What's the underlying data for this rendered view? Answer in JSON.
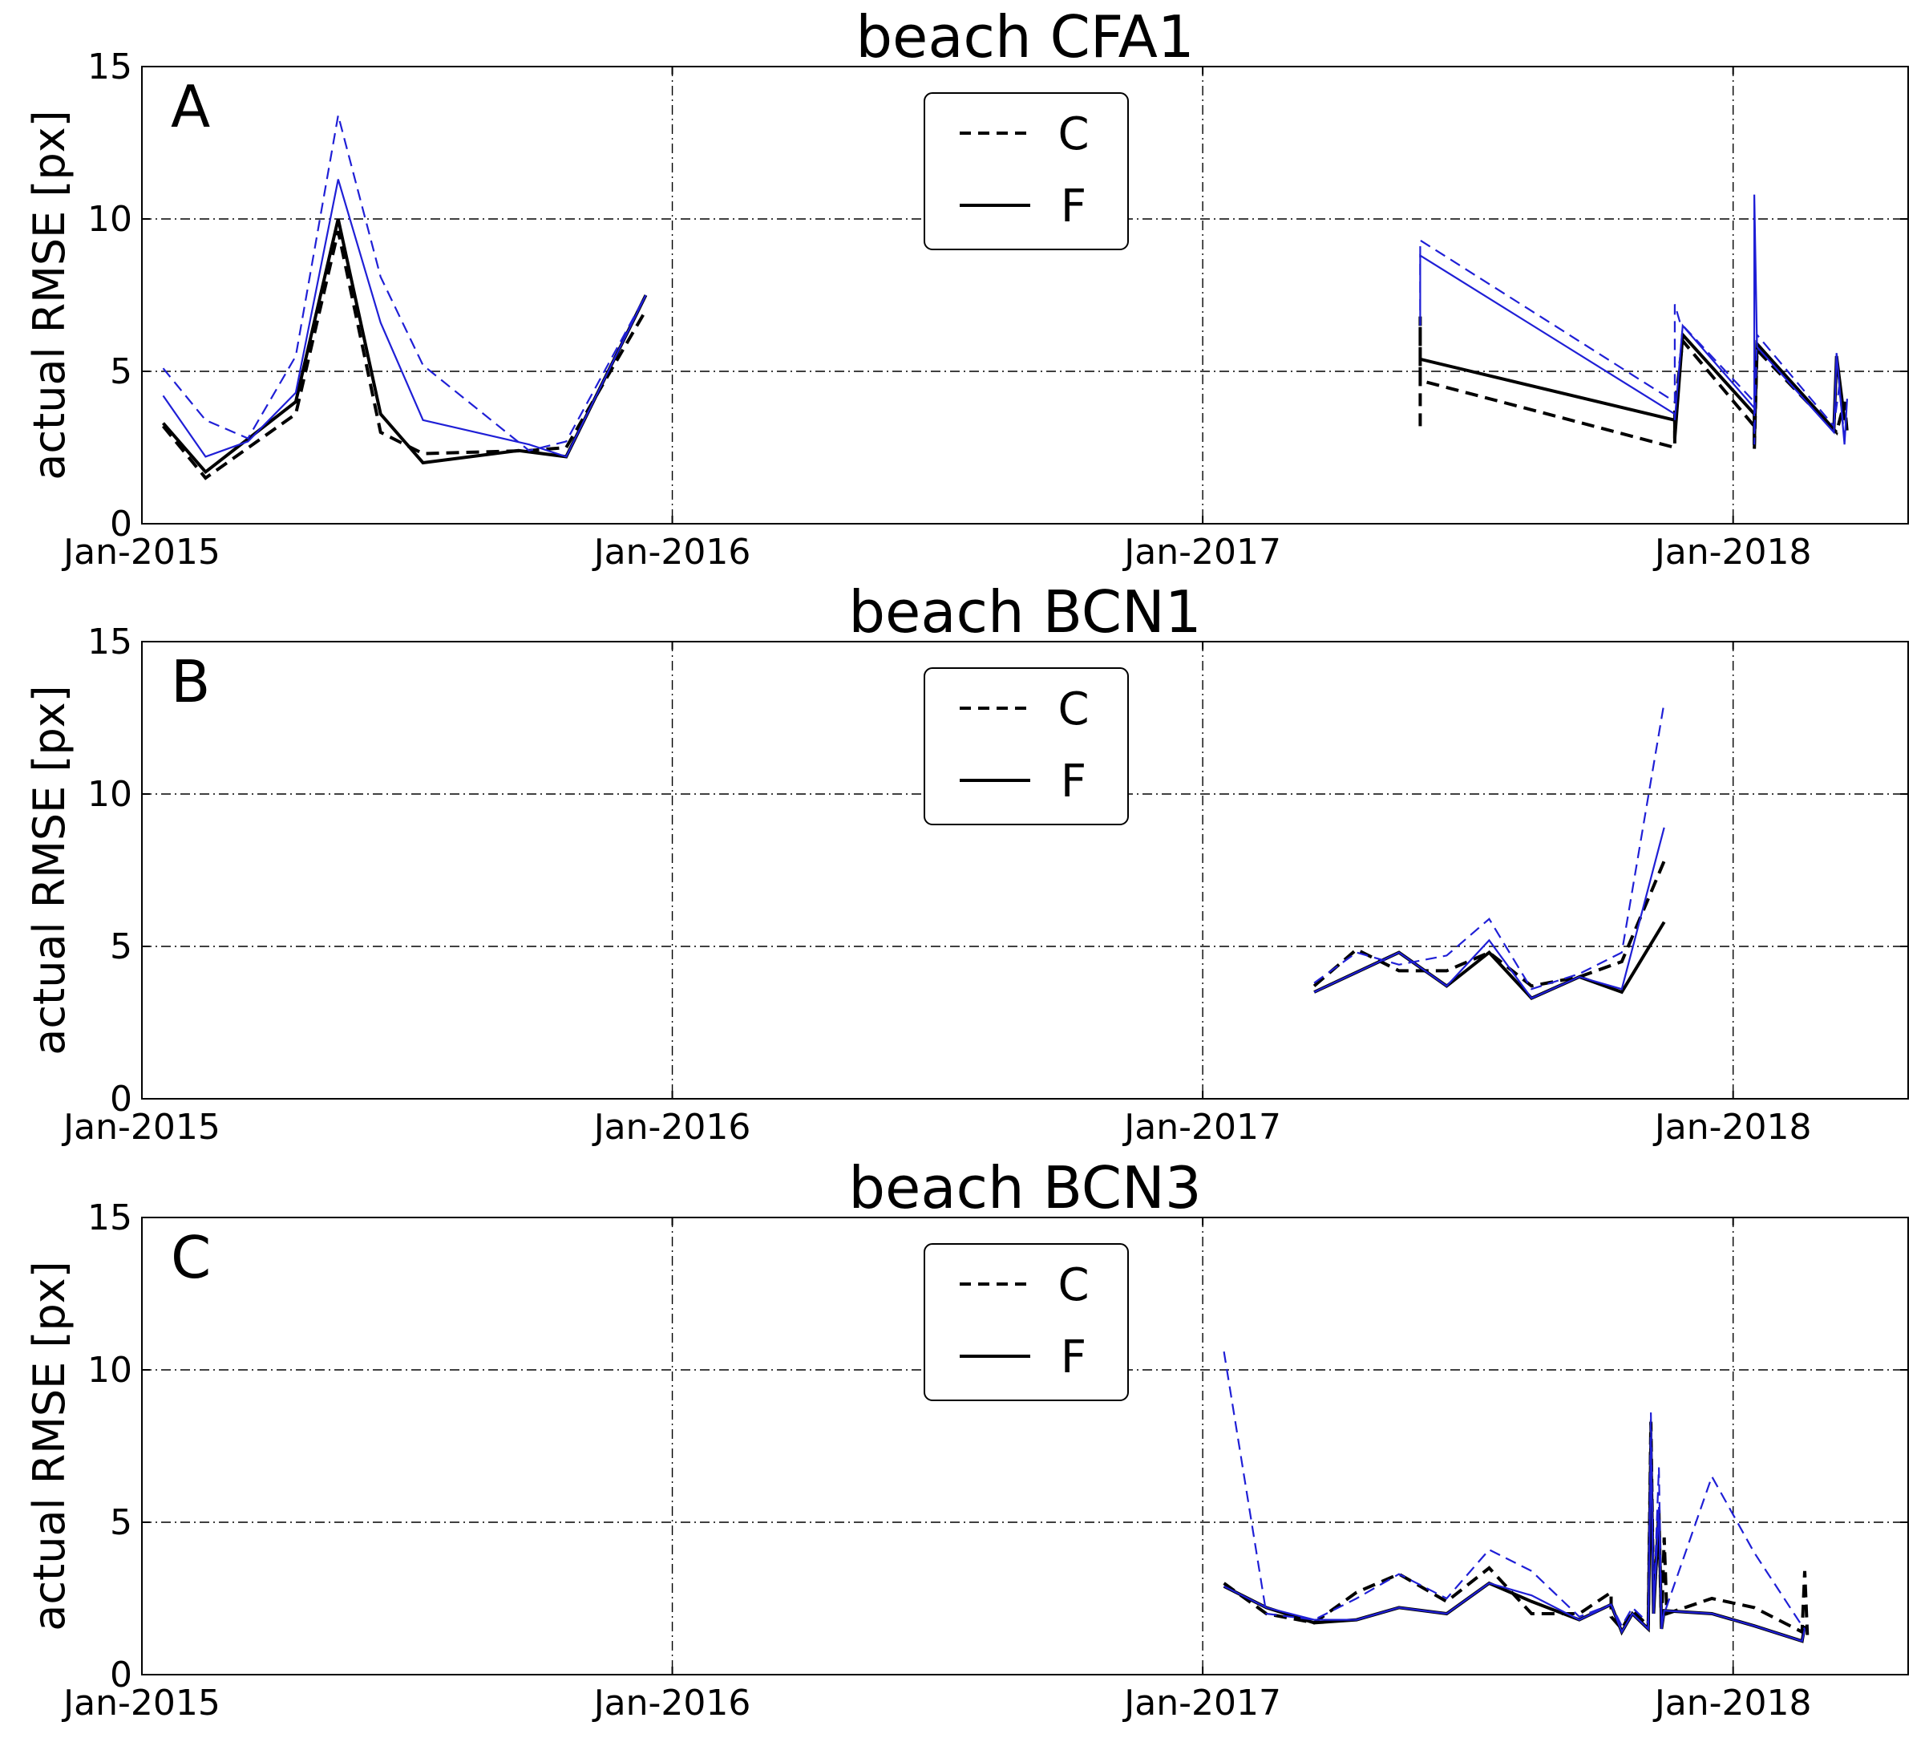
{
  "chart_data": [
    {
      "type": "line",
      "title": "beach CFA1",
      "panel_letter": "A",
      "ylabel": "actual RMSE [px]",
      "ylim": [
        0,
        15
      ],
      "yticks": [
        "0",
        "5",
        "10",
        "15"
      ],
      "xlim": [
        2015.0,
        2018.33
      ],
      "xticks": [
        {
          "label": "Jan-2015",
          "value": 2015.0
        },
        {
          "label": "Jan-2016",
          "value": 2016.0
        },
        {
          "label": "Jan-2017",
          "value": 2017.0
        },
        {
          "label": "Jan-2018",
          "value": 2018.0
        }
      ],
      "grid": true,
      "legend": {
        "position": "top-center",
        "entries": [
          {
            "label": "C",
            "style": "dashed"
          },
          {
            "label": "F",
            "style": "solid"
          }
        ]
      },
      "series": [
        {
          "name": "black C",
          "color": "#000000",
          "style": "dashed",
          "width": 4,
          "segments": [
            {
              "x": [
                2015.04,
                2015.12,
                2015.29,
                2015.37,
                2015.45,
                2015.53,
                2015.73,
                2015.8,
                2015.95
              ],
              "y": [
                3.2,
                1.5,
                3.6,
                9.6,
                3.0,
                2.3,
                2.4,
                2.5,
                7.0
              ]
            },
            {
              "x": [
                2017.41,
                2017.41,
                2017.41,
                2017.89,
                2017.89,
                2017.905,
                2018.04,
                2018.04,
                2018.045,
                2018.195,
                2018.21,
                2018.215
              ],
              "y": [
                3.2,
                6.8,
                4.7,
                2.5,
                3.8,
                6.0,
                3.2,
                2.4,
                5.7,
                3.0,
                4.0,
                3.0
              ]
            }
          ]
        },
        {
          "name": "black F",
          "color": "#000000",
          "style": "solid",
          "width": 4,
          "segments": [
            {
              "x": [
                2015.04,
                2015.12,
                2015.29,
                2015.37,
                2015.45,
                2015.53,
                2015.71,
                2015.8,
                2015.95
              ],
              "y": [
                3.3,
                1.7,
                4.0,
                10.0,
                3.6,
                2.0,
                2.4,
                2.2,
                7.5
              ]
            },
            {
              "x": [
                2017.41,
                2017.41,
                2017.89,
                2017.89,
                2017.905,
                2018.04,
                2018.04,
                2018.045,
                2018.19,
                2018.195,
                2018.21
              ],
              "y": [
                5.4,
                5.4,
                3.4,
                2.8,
                6.2,
                3.6,
                2.6,
                5.9,
                3.1,
                5.5,
                3.4
              ]
            }
          ]
        },
        {
          "name": "blue C",
          "color": "#1f1fd6",
          "style": "dashed",
          "width": 2.2,
          "segments": [
            {
              "x": [
                2015.04,
                2015.12,
                2015.2,
                2015.29,
                2015.37,
                2015.45,
                2015.53,
                2015.73,
                2015.8,
                2015.95
              ],
              "y": [
                5.1,
                3.4,
                2.8,
                5.5,
                13.4,
                8.1,
                5.2,
                2.4,
                2.7,
                7.5
              ]
            },
            {
              "x": [
                2017.41,
                2017.41,
                2017.89,
                2017.89,
                2017.9,
                2018.04,
                2018.04,
                2018.045,
                2018.19,
                2018.2,
                2018.21
              ],
              "y": [
                7.0,
                9.3,
                4.0,
                7.2,
                6.6,
                4.0,
                2.6,
                6.2,
                3.2,
                4.5,
                2.8
              ]
            }
          ]
        },
        {
          "name": "blue F",
          "color": "#1f1fd6",
          "style": "solid",
          "width": 2.2,
          "segments": [
            {
              "x": [
                2015.04,
                2015.12,
                2015.2,
                2015.29,
                2015.37,
                2015.45,
                2015.53,
                2015.73,
                2015.8,
                2015.95
              ],
              "y": [
                4.2,
                2.2,
                2.7,
                4.3,
                11.3,
                6.6,
                3.4,
                2.6,
                2.2,
                7.5
              ]
            },
            {
              "x": [
                2017.41,
                2017.41,
                2017.89,
                2017.89,
                2017.905,
                2018.04,
                2018.04,
                2018.045,
                2018.19,
                2018.195,
                2018.21,
                2018.215
              ],
              "y": [
                6.5,
                8.8,
                3.6,
                3.4,
                6.5,
                3.8,
                10.8,
                5.8,
                3.0,
                5.6,
                2.6,
                4.1
              ]
            }
          ]
        }
      ]
    },
    {
      "type": "line",
      "title": "beach BCN1",
      "panel_letter": "B",
      "ylabel": "actual RMSE [px]",
      "ylim": [
        0,
        15
      ],
      "yticks": [
        "0",
        "5",
        "10",
        "15"
      ],
      "xlim": [
        2015.0,
        2018.33
      ],
      "xticks": [
        {
          "label": "Jan-2015",
          "value": 2015.0
        },
        {
          "label": "Jan-2016",
          "value": 2016.0
        },
        {
          "label": "Jan-2017",
          "value": 2017.0
        },
        {
          "label": "Jan-2018",
          "value": 2018.0
        }
      ],
      "grid": true,
      "legend": {
        "position": "top-center",
        "entries": [
          {
            "label": "C",
            "style": "dashed"
          },
          {
            "label": "F",
            "style": "solid"
          }
        ]
      },
      "series": [
        {
          "name": "black C",
          "color": "#000000",
          "style": "dashed",
          "width": 4,
          "segments": [
            {
              "x": [
                2017.21,
                2017.29,
                2017.37,
                2017.46,
                2017.54,
                2017.62,
                2017.71,
                2017.79,
                2017.87
              ],
              "y": [
                3.7,
                4.9,
                4.2,
                4.2,
                4.8,
                3.7,
                4.0,
                4.5,
                7.8
              ]
            }
          ]
        },
        {
          "name": "black F",
          "color": "#000000",
          "style": "solid",
          "width": 4,
          "segments": [
            {
              "x": [
                2017.21,
                2017.37,
                2017.46,
                2017.54,
                2017.62,
                2017.71,
                2017.79,
                2017.87
              ],
              "y": [
                3.5,
                4.8,
                3.7,
                4.8,
                3.3,
                4.0,
                3.5,
                5.8
              ]
            }
          ]
        },
        {
          "name": "blue C",
          "color": "#1f1fd6",
          "style": "dashed",
          "width": 2.2,
          "segments": [
            {
              "x": [
                2017.21,
                2017.29,
                2017.37,
                2017.46,
                2017.54,
                2017.62,
                2017.71,
                2017.79,
                2017.87
              ],
              "y": [
                3.8,
                4.8,
                4.4,
                4.7,
                5.9,
                3.6,
                4.1,
                4.8,
                13.0
              ]
            }
          ]
        },
        {
          "name": "blue F",
          "color": "#1f1fd6",
          "style": "solid",
          "width": 2.2,
          "segments": [
            {
              "x": [
                2017.21,
                2017.37,
                2017.46,
                2017.54,
                2017.62,
                2017.71,
                2017.79,
                2017.87
              ],
              "y": [
                3.5,
                4.8,
                3.7,
                5.2,
                3.3,
                4.0,
                3.6,
                8.9
              ]
            }
          ]
        }
      ]
    },
    {
      "type": "line",
      "title": "beach BCN3",
      "panel_letter": "C",
      "ylabel": "actual RMSE [px]",
      "ylim": [
        0,
        15
      ],
      "yticks": [
        "0",
        "5",
        "10",
        "15"
      ],
      "xlim": [
        2015.0,
        2018.33
      ],
      "xticks": [
        {
          "label": "Jan-2015",
          "value": 2015.0
        },
        {
          "label": "Jan-2016",
          "value": 2016.0
        },
        {
          "label": "Jan-2017",
          "value": 2017.0
        },
        {
          "label": "Jan-2018",
          "value": 2018.0
        }
      ],
      "grid": true,
      "legend": {
        "position": "top-center",
        "entries": [
          {
            "label": "C",
            "style": "dashed"
          },
          {
            "label": "F",
            "style": "solid"
          }
        ]
      },
      "series": [
        {
          "name": "black C",
          "color": "#000000",
          "style": "dashed",
          "width": 4,
          "segments": [
            {
              "x": [
                2017.04,
                2017.12,
                2017.21,
                2017.29,
                2017.37,
                2017.46,
                2017.54,
                2017.62,
                2017.71,
                2017.77,
                2017.77,
                2017.79,
                2017.81,
                2017.84,
                2017.845,
                2017.85,
                2017.86,
                2017.865,
                2017.87,
                2017.875,
                2017.96,
                2018.04,
                2018.13,
                2018.135,
                2018.14
              ],
              "y": [
                3.0,
                2.0,
                1.7,
                2.7,
                3.3,
                2.4,
                3.5,
                2.0,
                2.0,
                2.7,
                1.9,
                1.5,
                2.1,
                1.6,
                8.3,
                2.3,
                5.0,
                1.5,
                4.5,
                2.0,
                2.5,
                2.2,
                1.4,
                3.4,
                1.3
              ]
            }
          ]
        },
        {
          "name": "black F",
          "color": "#000000",
          "style": "solid",
          "width": 4,
          "segments": [
            {
              "x": [
                2017.04,
                2017.12,
                2017.21,
                2017.29,
                2017.37,
                2017.46,
                2017.54,
                2017.62,
                2017.71,
                2017.77,
                2017.79,
                2017.81,
                2017.84,
                2017.845,
                2017.85,
                2017.86,
                2017.865,
                2017.87,
                2017.96,
                2018.04,
                2018.13,
                2018.135
              ],
              "y": [
                2.9,
                2.2,
                1.7,
                1.8,
                2.2,
                2.0,
                3.0,
                2.4,
                1.8,
                2.3,
                1.4,
                2.0,
                1.5,
                7.6,
                2.0,
                5.4,
                1.5,
                2.1,
                2.0,
                1.6,
                1.1,
                1.6
              ]
            }
          ]
        },
        {
          "name": "blue C",
          "color": "#1f1fd6",
          "style": "dashed",
          "width": 2.2,
          "segments": [
            {
              "x": [
                2017.04,
                2017.12,
                2017.21,
                2017.29,
                2017.37,
                2017.46,
                2017.54,
                2017.62,
                2017.71,
                2017.77,
                2017.79,
                2017.81,
                2017.84,
                2017.845,
                2017.85,
                2017.86,
                2017.865,
                2017.87,
                2017.96,
                2018.04,
                2018.13,
                2018.135
              ],
              "y": [
                10.6,
                2.0,
                1.8,
                2.5,
                3.3,
                2.5,
                4.1,
                3.4,
                1.9,
                2.3,
                1.6,
                2.2,
                1.7,
                8.6,
                2.2,
                6.8,
                1.6,
                2.0,
                6.5,
                4.0,
                1.6,
                1.5
              ]
            }
          ]
        },
        {
          "name": "blue F",
          "color": "#1f1fd6",
          "style": "solid",
          "width": 2.2,
          "segments": [
            {
              "x": [
                2017.04,
                2017.12,
                2017.21,
                2017.29,
                2017.37,
                2017.46,
                2017.54,
                2017.62,
                2017.71,
                2017.77,
                2017.79,
                2017.81,
                2017.84,
                2017.845,
                2017.85,
                2017.86,
                2017.865,
                2017.87,
                2017.96,
                2018.04,
                2018.13,
                2018.135
              ],
              "y": [
                2.9,
                2.2,
                1.8,
                1.8,
                2.2,
                2.0,
                3.0,
                2.6,
                1.8,
                2.3,
                1.4,
                2.0,
                1.5,
                7.7,
                2.0,
                5.5,
                1.5,
                2.1,
                2.0,
                1.6,
                1.1,
                1.5
              ]
            }
          ]
        }
      ]
    }
  ]
}
